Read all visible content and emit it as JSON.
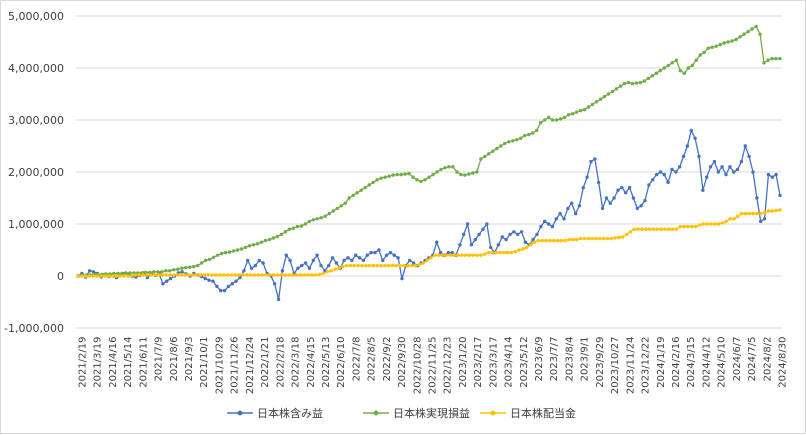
{
  "chart_data": {
    "type": "line",
    "title": "",
    "xlabel": "",
    "ylabel": "",
    "ylim": [
      -1000000,
      5000000
    ],
    "y_ticks": [
      {
        "value": 5000000,
        "label": "5,000,000"
      },
      {
        "value": 4000000,
        "label": "4,000,000"
      },
      {
        "value": 3000000,
        "label": "3,000,000"
      },
      {
        "value": 2000000,
        "label": "2,000,000"
      },
      {
        "value": 1000000,
        "label": "1,000,000"
      },
      {
        "value": 0,
        "label": "0"
      },
      {
        "value": -1000000,
        "label": "-1,000,000"
      }
    ],
    "negative_label_color": "#ff0000",
    "grid": "horizontal",
    "legend_position": "bottom",
    "x_tick_labels": [
      "2021/2/19",
      "2021/3/19",
      "2021/4/16",
      "2021/5/14",
      "2021/6/11",
      "2021/7/9",
      "2021/8/6",
      "2021/9/3",
      "2021/10/1",
      "2021/10/29",
      "2021/11/26",
      "2021/12/24",
      "2022/1/21",
      "2022/2/18",
      "2022/3/18",
      "2022/4/15",
      "2022/5/13",
      "2022/6/10",
      "2022/7/8",
      "2022/8/5",
      "2022/9/2",
      "2022/9/30",
      "2022/10/28",
      "2022/11/25",
      "2022/12/23",
      "2023/1/20",
      "2023/2/17",
      "2023/3/17",
      "2023/4/14",
      "2023/5/12",
      "2023/6/9",
      "2023/7/7",
      "2023/8/4",
      "2023/9/1",
      "2023/9/29",
      "2023/10/27",
      "2023/11/24",
      "2023/12/22",
      "2024/1/19",
      "2024/2/16",
      "2024/3/15",
      "2024/4/12",
      "2024/5/10",
      "2024/6/7",
      "2024/7/5",
      "2024/8/2",
      "2024/8/30"
    ],
    "series": [
      {
        "name": "日本株含み益",
        "color": "#4472c4",
        "values": [
          0,
          50000,
          -20000,
          100000,
          80000,
          50000,
          -20000,
          30000,
          -10000,
          0,
          -30000,
          20000,
          50000,
          30000,
          -10000,
          -20000,
          10000,
          60000,
          -30000,
          40000,
          10000,
          50000,
          -150000,
          -100000,
          -50000,
          0,
          60000,
          80000,
          40000,
          0,
          50000,
          20000,
          -10000,
          -50000,
          -80000,
          -100000,
          -200000,
          -280000,
          -280000,
          -200000,
          -150000,
          -100000,
          -30000,
          100000,
          300000,
          150000,
          200000,
          300000,
          250000,
          50000,
          0,
          -150000,
          -450000,
          100000,
          400000,
          300000,
          50000,
          150000,
          200000,
          250000,
          150000,
          300000,
          400000,
          200000,
          100000,
          200000,
          350000,
          250000,
          150000,
          300000,
          350000,
          300000,
          400000,
          350000,
          300000,
          400000,
          450000,
          450000,
          500000,
          300000,
          400000,
          450000,
          400000,
          350000,
          -50000,
          200000,
          300000,
          250000,
          200000,
          250000,
          300000,
          350000,
          400000,
          650000,
          450000,
          400000,
          450000,
          450000,
          400000,
          600000,
          800000,
          1000000,
          600000,
          700000,
          800000,
          900000,
          1000000,
          550000,
          450000,
          600000,
          750000,
          700000,
          800000,
          850000,
          800000,
          850000,
          650000,
          600000,
          700000,
          800000,
          950000,
          1050000,
          1000000,
          950000,
          1100000,
          1200000,
          1100000,
          1300000,
          1400000,
          1200000,
          1350000,
          1700000,
          1900000,
          2200000,
          2250000,
          1800000,
          1300000,
          1500000,
          1400000,
          1500000,
          1650000,
          1700000,
          1600000,
          1700000,
          1500000,
          1300000,
          1350000,
          1450000,
          1750000,
          1850000,
          1950000,
          2000000,
          1950000,
          1800000,
          2050000,
          2000000,
          2100000,
          2300000,
          2500000,
          2800000,
          2650000,
          2300000,
          1650000,
          1900000,
          2100000,
          2200000,
          2000000,
          2100000,
          1950000,
          2100000,
          2000000,
          2050000,
          2200000,
          2500000,
          2300000,
          2000000,
          1500000,
          1050000,
          1100000,
          1950000,
          1900000,
          1950000,
          1550000
        ]
      },
      {
        "name": "日本株実現損益",
        "color": "#70ad47",
        "values": [
          0,
          10000,
          20000,
          20000,
          30000,
          30000,
          30000,
          40000,
          40000,
          50000,
          50000,
          50000,
          60000,
          60000,
          60000,
          60000,
          60000,
          70000,
          70000,
          80000,
          80000,
          80000,
          100000,
          100000,
          120000,
          130000,
          150000,
          160000,
          170000,
          180000,
          200000,
          250000,
          300000,
          320000,
          360000,
          400000,
          430000,
          450000,
          460000,
          480000,
          500000,
          520000,
          550000,
          580000,
          600000,
          620000,
          650000,
          680000,
          700000,
          730000,
          760000,
          800000,
          850000,
          900000,
          920000,
          950000,
          960000,
          1000000,
          1050000,
          1080000,
          1100000,
          1120000,
          1150000,
          1200000,
          1250000,
          1300000,
          1350000,
          1400000,
          1500000,
          1550000,
          1600000,
          1650000,
          1700000,
          1750000,
          1800000,
          1850000,
          1880000,
          1900000,
          1920000,
          1940000,
          1950000,
          1950000,
          1960000,
          1970000,
          1900000,
          1850000,
          1820000,
          1850000,
          1900000,
          1950000,
          2000000,
          2050000,
          2080000,
          2100000,
          2100000,
          2000000,
          1950000,
          1940000,
          1960000,
          1980000,
          2000000,
          2250000,
          2300000,
          2350000,
          2400000,
          2450000,
          2500000,
          2550000,
          2580000,
          2600000,
          2620000,
          2650000,
          2700000,
          2720000,
          2750000,
          2800000,
          2950000,
          3000000,
          3050000,
          3000000,
          3000000,
          3020000,
          3050000,
          3100000,
          3120000,
          3150000,
          3180000,
          3200000,
          3250000,
          3300000,
          3350000,
          3400000,
          3450000,
          3500000,
          3550000,
          3600000,
          3650000,
          3700000,
          3720000,
          3700000,
          3710000,
          3720000,
          3750000,
          3800000,
          3850000,
          3900000,
          3950000,
          4000000,
          4050000,
          4100000,
          4150000,
          3950000,
          3900000,
          4000000,
          4050000,
          4150000,
          4250000,
          4300000,
          4380000,
          4400000,
          4420000,
          4450000,
          4480000,
          4500000,
          4520000,
          4550000,
          4600000,
          4650000,
          4700000,
          4750000,
          4800000,
          4650000,
          4100000,
          4150000,
          4180000,
          4180000,
          4180000
        ]
      },
      {
        "name": "日本株配当金",
        "color": "#ffc000",
        "values": [
          0,
          0,
          0,
          0,
          0,
          0,
          0,
          0,
          0,
          0,
          0,
          0,
          0,
          0,
          0,
          20000,
          20000,
          20000,
          20000,
          20000,
          20000,
          20000,
          20000,
          20000,
          20000,
          20000,
          20000,
          20000,
          20000,
          20000,
          20000,
          20000,
          20000,
          20000,
          20000,
          20000,
          20000,
          20000,
          20000,
          20000,
          20000,
          20000,
          20000,
          20000,
          20000,
          20000,
          20000,
          20000,
          20000,
          20000,
          20000,
          20000,
          20000,
          20000,
          20000,
          20000,
          20000,
          20000,
          20000,
          20000,
          20000,
          20000,
          20000,
          30000,
          50000,
          80000,
          100000,
          130000,
          150000,
          180000,
          200000,
          200000,
          200000,
          200000,
          200000,
          200000,
          200000,
          200000,
          200000,
          200000,
          200000,
          200000,
          200000,
          200000,
          200000,
          200000,
          200000,
          200000,
          200000,
          220000,
          250000,
          300000,
          350000,
          400000,
          400000,
          400000,
          400000,
          400000,
          400000,
          400000,
          400000,
          400000,
          400000,
          400000,
          400000,
          400000,
          420000,
          450000,
          450000,
          450000,
          450000,
          450000,
          450000,
          450000,
          470000,
          500000,
          520000,
          550000,
          600000,
          650000,
          680000,
          680000,
          680000,
          680000,
          680000,
          680000,
          680000,
          680000,
          700000,
          700000,
          700000,
          720000,
          720000,
          720000,
          720000,
          720000,
          720000,
          720000,
          720000,
          720000,
          730000,
          740000,
          750000,
          800000,
          850000,
          900000,
          900000,
          900000,
          900000,
          900000,
          900000,
          900000,
          900000,
          900000,
          900000,
          900000,
          900000,
          950000,
          950000,
          950000,
          950000,
          950000,
          980000,
          1000000,
          1000000,
          1000000,
          1000000,
          1000000,
          1020000,
          1050000,
          1100000,
          1100000,
          1150000,
          1200000,
          1200000,
          1200000,
          1200000,
          1200000,
          1200000,
          1220000,
          1250000,
          1250000,
          1260000,
          1270000
        ]
      }
    ]
  }
}
